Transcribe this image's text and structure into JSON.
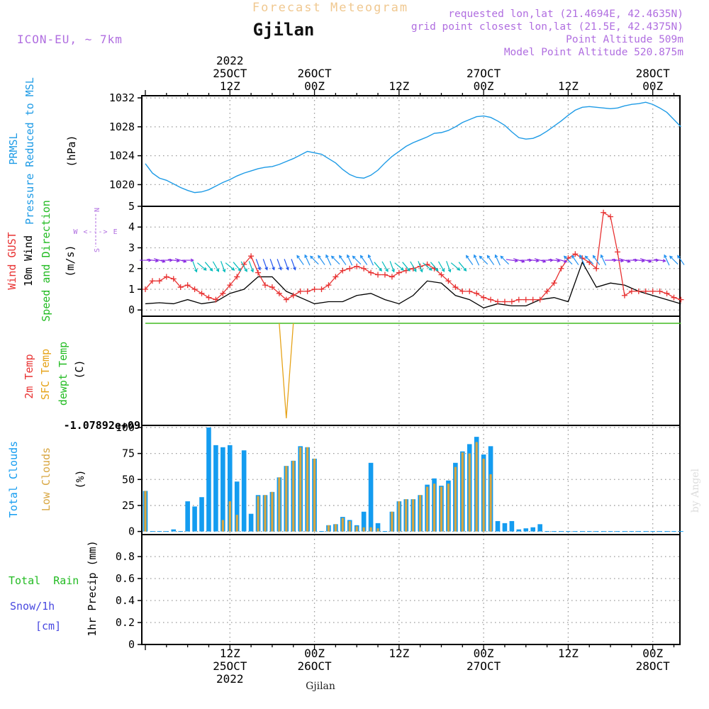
{
  "header": {
    "title": "Forecast Meteogram",
    "location": "Gjilan",
    "model": "ICON-EU, ~ 7km",
    "requested": "requested lon,lat (21.4694E, 42.4635N)",
    "grid_point": "grid point closest lon,lat (21.5E, 42.4375N)",
    "point_altitude": "Point Altitude 509m",
    "model_altitude": "Model Point Altitude 520.875m",
    "footer_location": "Gjilan",
    "watermark": "by Angel"
  },
  "colors": {
    "pressure": "#1e9be6",
    "gust": "#e83232",
    "wind": "#000000",
    "dir_label": "#22bb22",
    "compass": "#b06ee0",
    "sfc_temp": "#e6a319",
    "dewpt": "#44bb22",
    "clouds_total": "#149cf0",
    "clouds_low": "#d8a640",
    "rain": "#22bb22",
    "snow": "#4848e0",
    "header_violet": "#b06ee0",
    "title_orange": "#f0c890"
  },
  "time_axis": {
    "top_labels": [
      {
        "t": 12,
        "lines": [
          "2022",
          "25OCT",
          "12Z"
        ]
      },
      {
        "t": 24,
        "lines": [
          "26OCT",
          "00Z"
        ]
      },
      {
        "t": 36,
        "lines": [
          "12Z"
        ]
      },
      {
        "t": 48,
        "lines": [
          "27OCT",
          "00Z"
        ]
      },
      {
        "t": 60,
        "lines": [
          "12Z"
        ]
      },
      {
        "t": 72,
        "lines": [
          "28OCT",
          "00Z"
        ]
      }
    ],
    "bottom_labels": [
      {
        "t": 12,
        "lines": [
          "12Z",
          "25OCT",
          "2022"
        ]
      },
      {
        "t": 24,
        "lines": [
          "00Z",
          "26OCT"
        ]
      },
      {
        "t": 36,
        "lines": [
          "12Z"
        ]
      },
      {
        "t": 48,
        "lines": [
          "00Z",
          "27OCT"
        ]
      },
      {
        "t": 60,
        "lines": [
          "12Z"
        ]
      },
      {
        "t": 72,
        "lines": [
          "00Z",
          "28OCT"
        ]
      }
    ]
  },
  "chart_data": [
    {
      "type": "line",
      "ylabel_lines": [
        "PRMSL",
        "Pressure Reduced to MSL"
      ],
      "unit": "(hPa)",
      "ylim": [
        1017,
        1032.3
      ],
      "yticks": [
        1020,
        1024,
        1028,
        1032
      ],
      "series": [
        {
          "name": "PRMSL",
          "color": "#1e9be6",
          "x": [
            0,
            1,
            2,
            3,
            4,
            5,
            6,
            7,
            8,
            9,
            10,
            11,
            12,
            13,
            14,
            15,
            16,
            17,
            18,
            19,
            20,
            21,
            22,
            23,
            24,
            25,
            26,
            27,
            28,
            29,
            30,
            31,
            32,
            33,
            34,
            35,
            36,
            37,
            38,
            39,
            40,
            41,
            42,
            43,
            44,
            45,
            46,
            47,
            48,
            49,
            50,
            51,
            52,
            53,
            54,
            55,
            56,
            57,
            58,
            59,
            60,
            61,
            62,
            63,
            64,
            65,
            66,
            67,
            68,
            69,
            70,
            71,
            72,
            73,
            74,
            75,
            76
          ],
          "y": [
            1022.9,
            1021.6,
            1020.9,
            1020.6,
            1020.1,
            1019.6,
            1019.2,
            1018.9,
            1019.0,
            1019.3,
            1019.8,
            1020.3,
            1020.7,
            1021.2,
            1021.6,
            1021.9,
            1022.2,
            1022.4,
            1022.5,
            1022.8,
            1023.2,
            1023.6,
            1024.1,
            1024.6,
            1024.4,
            1024.2,
            1023.6,
            1023.0,
            1022.1,
            1021.4,
            1021.0,
            1020.9,
            1021.3,
            1022.0,
            1023.0,
            1023.9,
            1024.6,
            1025.3,
            1025.8,
            1026.2,
            1026.6,
            1027.1,
            1027.2,
            1027.5,
            1028.0,
            1028.6,
            1029.0,
            1029.4,
            1029.5,
            1029.3,
            1028.8,
            1028.2,
            1027.3,
            1026.5,
            1026.3,
            1026.4,
            1026.8,
            1027.4,
            1028.1,
            1028.8,
            1029.6,
            1030.3,
            1030.7,
            1030.8,
            1030.7,
            1030.6,
            1030.5,
            1030.6,
            1030.9,
            1031.1,
            1031.2,
            1031.4,
            1031.1,
            1030.6,
            1030.0,
            1029.0,
            1028.0
          ]
        }
      ]
    },
    {
      "type": "line",
      "ylabel_lines": [
        "Wind GUST",
        "10m Wind",
        "Speed and Direction"
      ],
      "unit": "(m/s)",
      "compass": [
        "N",
        "W <---> E",
        "S"
      ],
      "ylim": [
        -0.3,
        5
      ],
      "yticks": [
        0,
        1,
        2,
        3,
        4,
        5
      ],
      "series": [
        {
          "name": "Wind GUST",
          "color": "#e83232",
          "x": [
            0,
            1,
            2,
            3,
            4,
            5,
            6,
            7,
            8,
            9,
            10,
            11,
            12,
            13,
            14,
            15,
            16,
            17,
            18,
            19,
            20,
            21,
            22,
            23,
            24,
            25,
            26,
            27,
            28,
            29,
            30,
            31,
            32,
            33,
            34,
            35,
            36,
            37,
            38,
            39,
            40,
            41,
            42,
            43,
            44,
            45,
            46,
            47,
            48,
            49,
            50,
            51,
            52,
            53,
            54,
            55,
            56,
            57,
            58,
            59,
            60,
            61,
            62,
            63,
            64,
            65,
            66,
            67,
            68,
            69,
            70,
            71,
            72,
            73,
            74,
            75,
            76
          ],
          "y": [
            1.0,
            1.4,
            1.4,
            1.6,
            1.5,
            1.1,
            1.2,
            1.0,
            0.8,
            0.6,
            0.5,
            0.8,
            1.2,
            1.6,
            2.2,
            2.6,
            1.8,
            1.2,
            1.1,
            0.8,
            0.5,
            0.7,
            0.9,
            0.9,
            1.0,
            1.0,
            1.2,
            1.6,
            1.9,
            2.0,
            2.1,
            2.0,
            1.8,
            1.7,
            1.7,
            1.6,
            1.8,
            1.9,
            2.0,
            2.1,
            2.2,
            2.0,
            1.7,
            1.4,
            1.1,
            0.9,
            0.9,
            0.8,
            0.6,
            0.5,
            0.4,
            0.4,
            0.4,
            0.5,
            0.5,
            0.5,
            0.5,
            0.9,
            1.3,
            2.0,
            2.5,
            2.7,
            2.5,
            2.3,
            2.0,
            4.7,
            4.5,
            2.8,
            0.7,
            0.9,
            0.9,
            0.9,
            0.9,
            0.9,
            0.8,
            0.6,
            0.5
          ]
        },
        {
          "name": "10m Wind",
          "color": "#000000",
          "x": [
            0,
            2,
            4,
            6,
            8,
            10,
            12,
            14,
            16,
            18,
            20,
            22,
            24,
            26,
            28,
            30,
            32,
            34,
            36,
            38,
            40,
            42,
            44,
            46,
            48,
            50,
            52,
            54,
            56,
            58,
            60,
            62,
            64,
            66,
            68,
            70,
            72,
            74,
            76
          ],
          "y": [
            0.3,
            0.35,
            0.3,
            0.5,
            0.3,
            0.4,
            0.8,
            1.0,
            1.6,
            1.6,
            0.9,
            0.6,
            0.3,
            0.4,
            0.4,
            0.7,
            0.8,
            0.5,
            0.3,
            0.7,
            1.4,
            1.3,
            0.7,
            0.5,
            0.1,
            0.3,
            0.2,
            0.2,
            0.5,
            0.6,
            0.4,
            2.3,
            1.1,
            1.3,
            1.2,
            0.9,
            0.7,
            0.5,
            0.3
          ]
        }
      ]
    },
    {
      "type": "line",
      "ylabel_lines": [
        "2m Temp",
        "SFC Temp",
        "dewpt Temp"
      ],
      "unit": "(C)",
      "lower_tick_label": "-1.07892e+09",
      "series": [
        {
          "name": "SFC Temp",
          "color": "#e6a319"
        },
        {
          "name": "dewpt Temp",
          "color": "#44bb22"
        }
      ]
    },
    {
      "type": "bar",
      "ylabel_lines": [
        "Total Clouds",
        "Low Clouds"
      ],
      "unit": "(%)",
      "ylim": [
        -3,
        102
      ],
      "yticks": [
        0,
        25,
        50,
        75,
        100
      ],
      "x": [
        0,
        1,
        2,
        3,
        4,
        5,
        6,
        7,
        8,
        9,
        10,
        11,
        12,
        13,
        14,
        15,
        16,
        17,
        18,
        19,
        20,
        21,
        22,
        23,
        24,
        25,
        26,
        27,
        28,
        29,
        30,
        31,
        32,
        33,
        34,
        35,
        36,
        37,
        38,
        39,
        40,
        41,
        42,
        43,
        44,
        45,
        46,
        47,
        48,
        49,
        50,
        51,
        52,
        53,
        54,
        55,
        56,
        57,
        58,
        59,
        60,
        61,
        62,
        63,
        64,
        65,
        66,
        67,
        68,
        69,
        70,
        71,
        72,
        73,
        74,
        75,
        76
      ],
      "series": [
        {
          "name": "Total Clouds",
          "color": "#149cf0",
          "values": [
            39,
            0,
            0,
            0,
            2,
            0,
            29,
            24,
            33,
            100,
            83,
            81,
            83,
            48,
            78,
            17,
            35,
            35,
            38,
            52,
            63,
            68,
            82,
            81,
            70,
            0,
            6,
            7,
            14,
            11,
            6,
            19,
            66,
            8,
            0,
            19,
            29,
            31,
            31,
            35,
            45,
            51,
            44,
            49,
            66,
            77,
            84,
            91,
            74,
            82,
            10,
            8,
            10,
            2,
            3,
            4,
            7,
            0,
            0,
            0,
            0,
            0,
            0,
            0,
            0,
            0,
            0,
            0,
            0,
            0,
            0,
            0,
            0,
            0,
            0,
            0,
            0
          ]
        },
        {
          "name": "Low Clouds",
          "color": "#d8a640",
          "values": [
            39,
            0,
            0,
            0,
            0,
            0,
            0,
            0,
            0,
            0,
            0,
            11,
            29,
            16,
            0,
            0,
            34,
            35,
            38,
            52,
            63,
            68,
            81,
            81,
            70,
            0,
            6,
            7,
            13,
            10,
            5,
            4,
            4,
            3,
            0,
            19,
            29,
            31,
            31,
            35,
            43,
            46,
            43,
            46,
            62,
            76,
            75,
            86,
            70,
            55,
            0,
            0,
            0,
            0,
            0,
            0,
            0,
            0,
            0,
            0,
            0,
            0,
            0,
            0,
            0,
            0,
            0,
            0,
            0,
            0,
            0,
            0,
            0,
            0,
            0,
            0,
            0
          ]
        }
      ]
    },
    {
      "type": "bar",
      "ylabel": "1hr Precip (mm)",
      "legend": {
        "rain": "Total  Rain",
        "snow_line1": "Snow/1h",
        "snow_line2": "[cm]"
      },
      "ylim": [
        0,
        1
      ],
      "yticks": [
        0,
        0.2,
        0.4,
        0.6,
        0.8
      ],
      "series": [
        {
          "name": "Total Rain",
          "color": "#22bb22",
          "values": []
        }
      ]
    }
  ]
}
